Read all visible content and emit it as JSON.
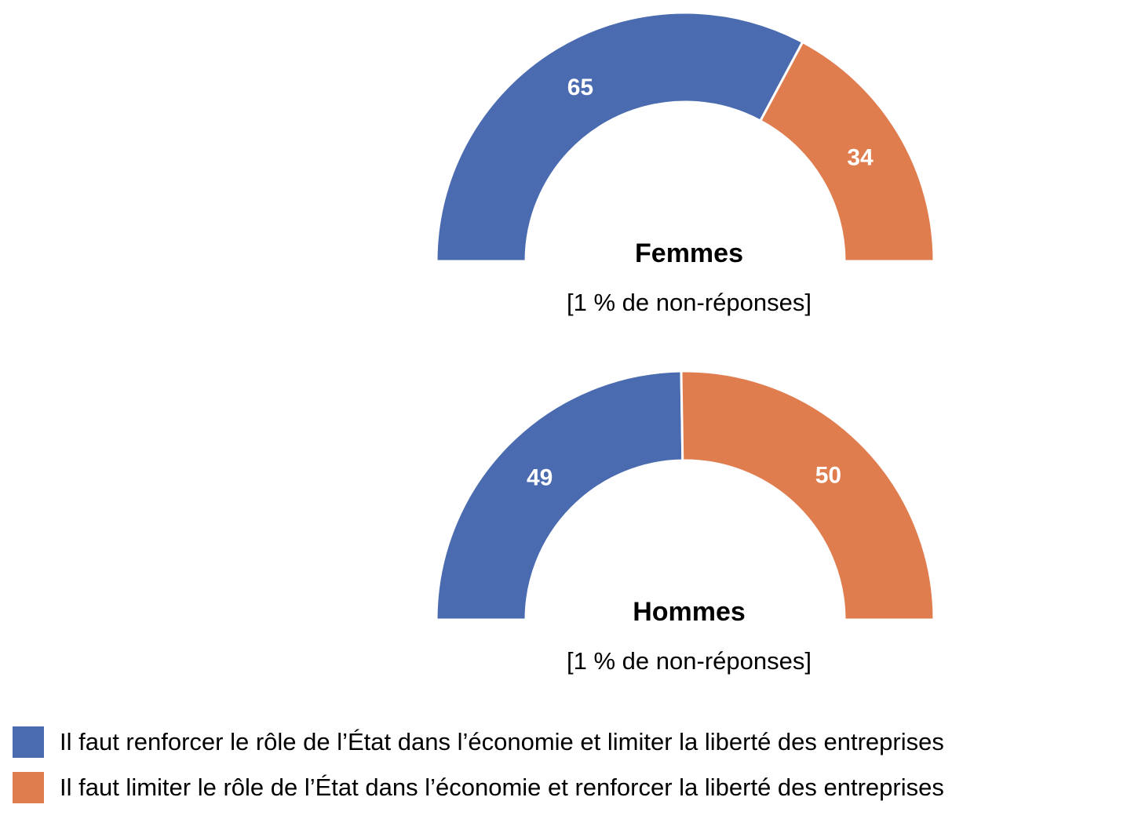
{
  "colors": {
    "series_a": "#4a6baf",
    "series_b": "#df7d4f"
  },
  "chart_data": {
    "type": "pie",
    "subtype": "half-doughnut",
    "series": [
      {
        "name": "Il faut renforcer le rôle de l’État dans l’économie et limiter la liberté des entreprises",
        "color": "#4a6baf"
      },
      {
        "name": "Il faut limiter le rôle de l’État dans l’économie et renforcer la liberté des entreprises",
        "color": "#df7d4f"
      }
    ],
    "charts": [
      {
        "title": "Femmes",
        "subtitle": "[1 % de non-réponses]",
        "values": [
          65,
          34
        ],
        "labels": [
          "65",
          "34"
        ]
      },
      {
        "title": "Hommes",
        "subtitle": "[1 % de non-réponses]",
        "values": [
          49,
          50
        ],
        "labels": [
          "49",
          "50"
        ]
      }
    ],
    "legend_position": "bottom-left"
  },
  "legend": {
    "items": [
      {
        "label": "Il faut renforcer le rôle de l’État dans l’économie et limiter la liberté des entreprises",
        "color": "#4a6baf"
      },
      {
        "label": "Il faut limiter le rôle de l’État dans l’économie et renforcer la liberté des entreprises",
        "color": "#df7d4f"
      }
    ]
  }
}
